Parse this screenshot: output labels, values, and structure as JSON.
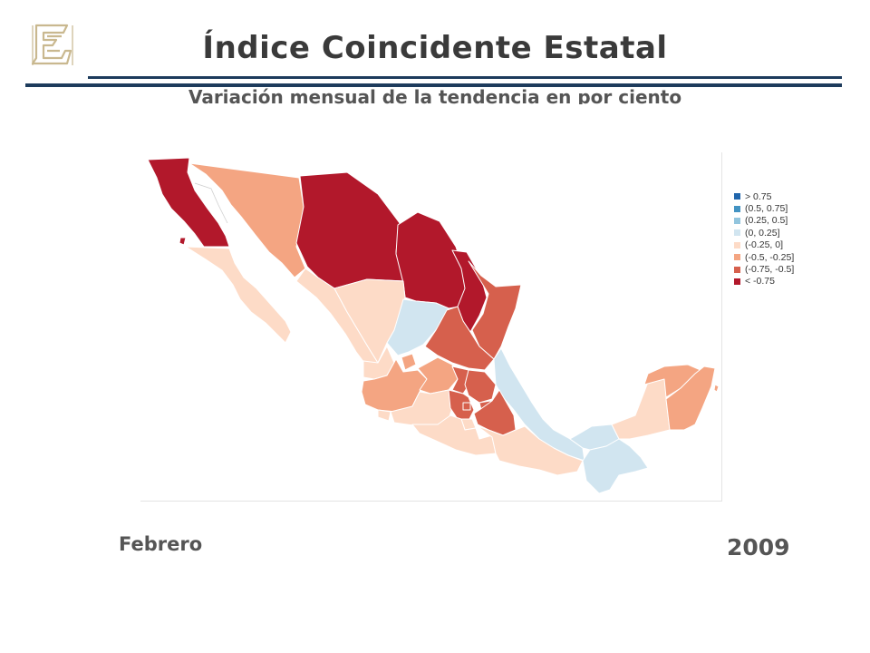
{
  "header": {
    "title": "Índice Coincidente Estatal",
    "subtitle": "Variación mensual de la tendencia en por ciento"
  },
  "legend": {
    "items": [
      {
        "label": "> 0.75",
        "color": "#2166ac"
      },
      {
        "label": "(0.5, 0.75]",
        "color": "#4393c3"
      },
      {
        "label": "(0.25, 0.5]",
        "color": "#92c5de"
      },
      {
        "label": "(0, 0.25]",
        "color": "#d1e5f0"
      },
      {
        "label": "(-0.25, 0]",
        "color": "#fddbc7"
      },
      {
        "label": "(-0.5, -0.25]",
        "color": "#f4a582"
      },
      {
        "label": "(-0.75, -0.5]",
        "color": "#d6604d"
      },
      {
        "label": "< -0.75",
        "color": "#b2182b"
      }
    ]
  },
  "footer": {
    "month": "Febrero",
    "year": "2009"
  },
  "colors": {
    "rule": "#1d3b5c",
    "logo": "#c9b88f",
    "text": "#555555"
  }
}
